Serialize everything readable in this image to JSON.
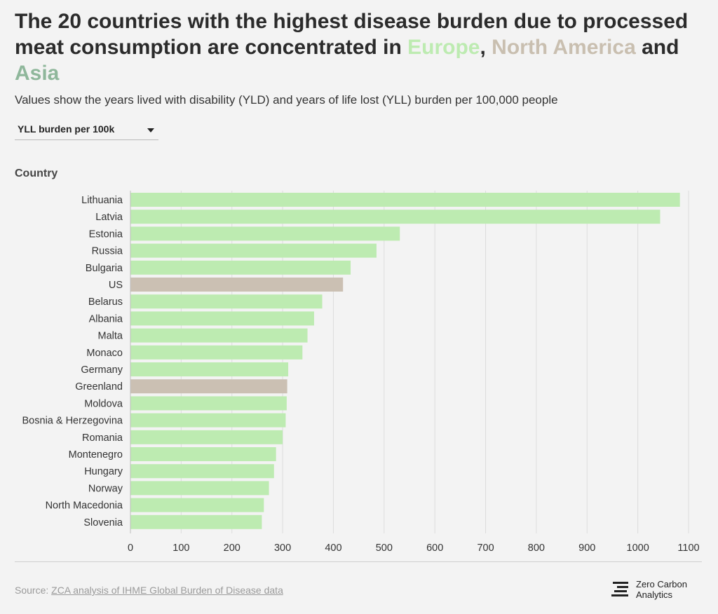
{
  "title": {
    "part1": "The 20 countries with the highest disease burden due to processed meat consumption are concentrated in ",
    "region1": "Europe",
    "sep1": ", ",
    "region2": "North America",
    "sep2": " and ",
    "region3": "Asia"
  },
  "subtitle": "Values show the years lived with disability (YLD) and years of life lost (YLL) burden per 100,000 people",
  "dropdown": {
    "selected": "YLL burden per 100k"
  },
  "colors": {
    "europe": "#bdebb1",
    "north_america": "#cbc0b3",
    "asia": "#8fb79b"
  },
  "footer": {
    "source_prefix": "Source: ",
    "source_link": "ZCA analysis of IHME Global Burden of Disease data",
    "logo_line1": "Zero Carbon",
    "logo_line2": "Analytics"
  },
  "chart_data": {
    "type": "bar",
    "orientation": "horizontal",
    "title": "",
    "ylabel": "Country",
    "xlabel": "",
    "xlim": [
      0,
      1100
    ],
    "xticks": [
      0,
      100,
      200,
      300,
      400,
      500,
      600,
      700,
      800,
      900,
      1000,
      1100
    ],
    "grid": true,
    "categories": [
      "Lithuania",
      "Latvia",
      "Estonia",
      "Russia",
      "Bulgaria",
      "US",
      "Belarus",
      "Albania",
      "Malta",
      "Monaco",
      "Germany",
      "Greenland",
      "Moldova",
      "Bosnia & Herzegovina",
      "Romania",
      "Montenegro",
      "Hungary",
      "Norway",
      "North Macedonia",
      "Slovenia"
    ],
    "values": [
      1083,
      1044,
      531,
      485,
      434,
      419,
      378,
      362,
      349,
      339,
      311,
      309,
      308,
      306,
      300,
      287,
      283,
      273,
      263,
      259
    ],
    "regions": [
      "europe",
      "europe",
      "europe",
      "europe",
      "europe",
      "north_america",
      "europe",
      "europe",
      "europe",
      "europe",
      "europe",
      "north_america",
      "europe",
      "europe",
      "europe",
      "europe",
      "europe",
      "europe",
      "europe",
      "europe"
    ]
  }
}
